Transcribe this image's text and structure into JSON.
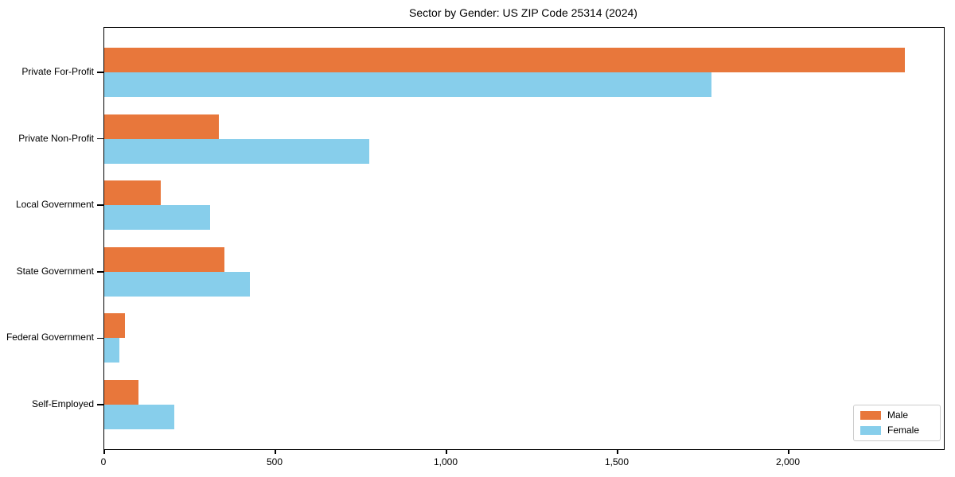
{
  "title": "Sector by Gender: US ZIP Code 25314 (2024)",
  "chart_data": {
    "type": "bar",
    "orientation": "horizontal",
    "title": "Sector by Gender: US ZIP Code 25314 (2024)",
    "categories": [
      "Private For-Profit",
      "Private Non-Profit",
      "Local Government",
      "State Government",
      "Federal Government",
      "Self-Employed"
    ],
    "series": [
      {
        "name": "Male",
        "color": "#E8773B",
        "values": [
          2340,
          335,
          165,
          350,
          60,
          100
        ]
      },
      {
        "name": "Female",
        "color": "#87CEEB",
        "values": [
          1775,
          775,
          310,
          425,
          45,
          205
        ]
      }
    ],
    "xlabel": "",
    "ylabel": "",
    "xlim": [
      0,
      2455
    ],
    "x_ticks": [
      {
        "value": 0,
        "label": "0"
      },
      {
        "value": 500,
        "label": "500"
      },
      {
        "value": 1000,
        "label": "1,000"
      },
      {
        "value": 1500,
        "label": "1,500"
      },
      {
        "value": 2000,
        "label": "2,000"
      }
    ],
    "grid": false,
    "legend_position": "lower right"
  }
}
